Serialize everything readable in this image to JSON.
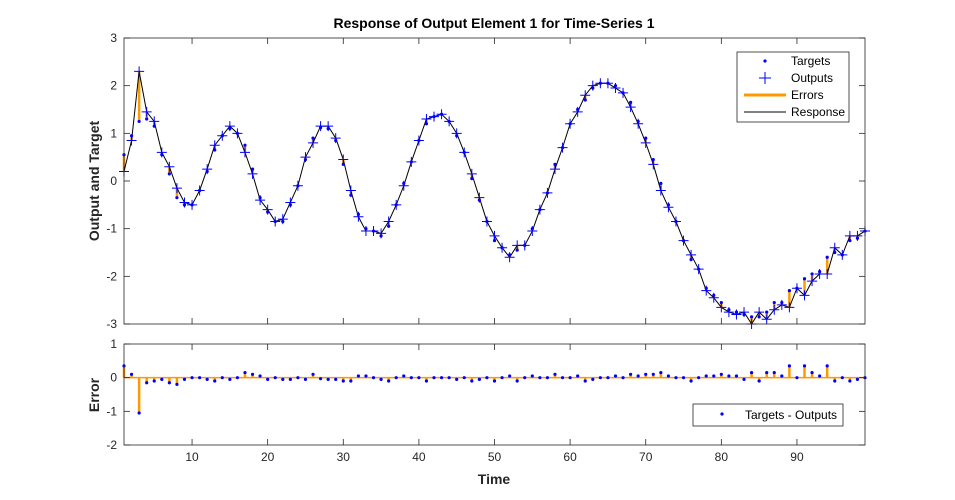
{
  "chart_data": [
    {
      "type": "line",
      "title": "Response of Output Element 1 for Time-Series 1",
      "xlabel": "",
      "ylabel": "Output and Target",
      "xlim": [
        1,
        99
      ],
      "ylim": [
        -3,
        3
      ],
      "yticks": [
        "3",
        "2",
        "1",
        "0",
        "-1",
        "-2",
        "-3"
      ],
      "legend": {
        "position": "top-right",
        "entries": [
          "Targets",
          "Outputs",
          "Errors",
          "Response"
        ]
      },
      "colors": {
        "targets": "#0000ff",
        "outputs": "#0000ff",
        "errors": "#ff9900",
        "response": "#000000"
      },
      "series": [
        {
          "name": "Targets",
          "x": [
            1,
            2,
            3,
            4,
            5,
            6,
            7,
            8,
            9,
            10,
            11,
            12,
            13,
            14,
            15,
            16,
            17,
            18,
            19,
            20,
            21,
            22,
            23,
            24,
            25,
            26,
            27,
            28,
            29,
            30,
            31,
            32,
            33,
            34,
            35,
            36,
            37,
            38,
            39,
            40,
            41,
            42,
            43,
            44,
            45,
            46,
            47,
            48,
            49,
            50,
            51,
            52,
            53,
            54,
            55,
            56,
            57,
            58,
            59,
            60,
            61,
            62,
            63,
            64,
            65,
            66,
            67,
            68,
            69,
            70,
            71,
            72,
            73,
            74,
            75,
            76,
            77,
            78,
            79,
            80,
            81,
            82,
            83,
            84,
            85,
            86,
            87,
            88,
            89,
            90,
            91,
            92,
            93,
            94,
            95,
            96,
            97,
            98,
            99
          ],
          "values": [
            0.55,
            0.95,
            1.25,
            1.3,
            1.15,
            0.55,
            0.15,
            -0.35,
            -0.5,
            -0.5,
            -0.2,
            0.2,
            0.65,
            0.95,
            1.1,
            1.0,
            0.75,
            0.25,
            -0.35,
            -0.65,
            -0.85,
            -0.85,
            -0.5,
            -0.1,
            0.45,
            0.9,
            1.12,
            1.1,
            0.85,
            0.35,
            -0.3,
            -0.7,
            -1.0,
            -1.05,
            -1.15,
            -0.95,
            -0.5,
            -0.05,
            0.4,
            0.85,
            1.2,
            1.35,
            1.4,
            1.25,
            0.95,
            0.6,
            0.05,
            -0.4,
            -0.85,
            -1.25,
            -1.4,
            -1.55,
            -1.45,
            -1.35,
            -1.0,
            -0.6,
            -0.25,
            0.35,
            0.7,
            1.2,
            1.5,
            1.7,
            1.95,
            2.05,
            2.05,
            2.0,
            1.85,
            1.65,
            1.25,
            0.9,
            0.45,
            -0.05,
            -0.5,
            -0.85,
            -1.25,
            -1.65,
            -1.85,
            -2.25,
            -2.4,
            -2.55,
            -2.7,
            -2.75,
            -2.8,
            -2.85,
            -2.85,
            -2.75,
            -2.55,
            -2.55,
            -2.3,
            -2.25,
            -2.05,
            -1.95,
            -1.9,
            -1.6,
            -1.5,
            -1.55,
            -1.25,
            -1.2,
            -1.05
          ]
        },
        {
          "name": "Outputs",
          "x": [
            1,
            2,
            3,
            4,
            5,
            6,
            7,
            8,
            9,
            10,
            11,
            12,
            13,
            14,
            15,
            16,
            17,
            18,
            19,
            20,
            21,
            22,
            23,
            24,
            25,
            26,
            27,
            28,
            29,
            30,
            31,
            32,
            33,
            34,
            35,
            36,
            37,
            38,
            39,
            40,
            41,
            42,
            43,
            44,
            45,
            46,
            47,
            48,
            49,
            50,
            51,
            52,
            53,
            54,
            55,
            56,
            57,
            58,
            59,
            60,
            61,
            62,
            63,
            64,
            65,
            66,
            67,
            68,
            69,
            70,
            71,
            72,
            73,
            74,
            75,
            76,
            77,
            78,
            79,
            80,
            81,
            82,
            83,
            84,
            85,
            86,
            87,
            88,
            89,
            90,
            91,
            92,
            93,
            94,
            95,
            96,
            97,
            98,
            99
          ],
          "values": [
            0.2,
            0.85,
            2.3,
            1.45,
            1.25,
            0.6,
            0.3,
            -0.15,
            -0.45,
            -0.5,
            -0.2,
            0.25,
            0.75,
            0.95,
            1.15,
            1.0,
            0.6,
            0.15,
            -0.4,
            -0.6,
            -0.85,
            -0.8,
            -0.45,
            -0.1,
            0.5,
            0.8,
            1.15,
            1.15,
            0.9,
            0.45,
            -0.2,
            -0.75,
            -1.05,
            -1.05,
            -1.1,
            -0.85,
            -0.5,
            -0.1,
            0.4,
            0.85,
            1.3,
            1.35,
            1.4,
            1.25,
            1.0,
            0.6,
            0.15,
            -0.35,
            -0.85,
            -1.15,
            -1.4,
            -1.6,
            -1.35,
            -1.35,
            -1.05,
            -0.6,
            -0.25,
            0.25,
            0.7,
            1.2,
            1.45,
            1.8,
            2.0,
            2.05,
            2.05,
            1.95,
            1.85,
            1.55,
            1.2,
            0.8,
            0.35,
            -0.2,
            -0.55,
            -0.85,
            -1.25,
            -1.55,
            -1.85,
            -2.3,
            -2.45,
            -2.65,
            -2.75,
            -2.8,
            -2.75,
            -3.0,
            -2.75,
            -2.9,
            -2.7,
            -2.6,
            -2.65,
            -2.25,
            -2.4,
            -2.1,
            -1.95,
            -1.95,
            -1.4,
            -1.55,
            -1.15,
            -1.15,
            -1.05
          ]
        }
      ]
    },
    {
      "type": "line",
      "title": "",
      "xlabel": "Time",
      "ylabel": "Error",
      "xlim": [
        1,
        99
      ],
      "ylim": [
        -2,
        1
      ],
      "xticks": [
        "10",
        "20",
        "30",
        "40",
        "50",
        "60",
        "70",
        "80",
        "90"
      ],
      "yticks": [
        "1",
        "0",
        "-1",
        "-2"
      ],
      "legend": {
        "position": "bottom-right",
        "entries": [
          "Targets - Outputs"
        ]
      },
      "series": [
        {
          "name": "Targets - Outputs",
          "x": [
            1,
            2,
            3,
            4,
            5,
            6,
            7,
            8,
            9,
            10,
            11,
            12,
            13,
            14,
            15,
            16,
            17,
            18,
            19,
            20,
            21,
            22,
            23,
            24,
            25,
            26,
            27,
            28,
            29,
            30,
            31,
            32,
            33,
            34,
            35,
            36,
            37,
            38,
            39,
            40,
            41,
            42,
            43,
            44,
            45,
            46,
            47,
            48,
            49,
            50,
            51,
            52,
            53,
            54,
            55,
            56,
            57,
            58,
            59,
            60,
            61,
            62,
            63,
            64,
            65,
            66,
            67,
            68,
            69,
            70,
            71,
            72,
            73,
            74,
            75,
            76,
            77,
            78,
            79,
            80,
            81,
            82,
            83,
            84,
            85,
            86,
            87,
            88,
            89,
            90,
            91,
            92,
            93,
            94,
            95,
            96,
            97,
            98,
            99
          ],
          "values": [
            0.35,
            0.1,
            -1.05,
            -0.15,
            -0.1,
            -0.05,
            -0.15,
            -0.2,
            -0.05,
            0.0,
            0.0,
            -0.05,
            -0.1,
            0.0,
            -0.05,
            0.0,
            0.15,
            0.1,
            0.05,
            -0.05,
            0.0,
            -0.05,
            -0.05,
            0.0,
            -0.05,
            0.1,
            -0.03,
            -0.05,
            -0.05,
            -0.1,
            -0.1,
            0.05,
            0.05,
            0.0,
            -0.05,
            -0.1,
            0.0,
            0.05,
            0.0,
            0.0,
            -0.1,
            0.0,
            0.0,
            0.0,
            -0.05,
            0.0,
            -0.1,
            -0.05,
            0.0,
            -0.1,
            0.0,
            0.05,
            -0.1,
            0.0,
            0.05,
            0.0,
            0.0,
            0.1,
            0.0,
            0.0,
            0.05,
            -0.1,
            -0.05,
            0.0,
            0.0,
            0.05,
            0.0,
            0.1,
            0.05,
            0.1,
            0.1,
            0.15,
            0.05,
            0.0,
            0.0,
            -0.1,
            0.0,
            0.05,
            0.05,
            0.1,
            0.05,
            0.05,
            -0.05,
            0.15,
            -0.1,
            0.15,
            0.15,
            0.05,
            0.35,
            0.0,
            0.35,
            0.15,
            0.05,
            0.35,
            -0.1,
            0.0,
            -0.1,
            -0.05,
            0.0
          ]
        }
      ]
    }
  ]
}
